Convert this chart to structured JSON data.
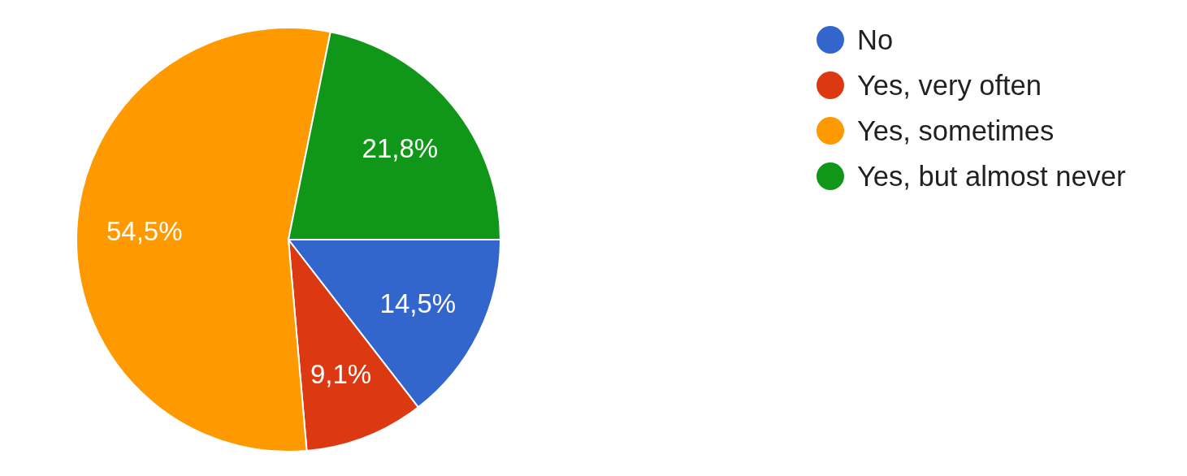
{
  "chart_data": {
    "type": "pie",
    "categories": [
      "No",
      "Yes, very often",
      "Yes, sometimes",
      "Yes, but almost never"
    ],
    "values": [
      14.5,
      9.1,
      54.5,
      21.8
    ],
    "colors": [
      "#3366cc",
      "#dc3912",
      "#ff9900",
      "#109618"
    ],
    "value_labels": [
      "14,5%",
      "9,1%",
      "54,5%",
      "21,8%"
    ],
    "legend": "top right"
  }
}
